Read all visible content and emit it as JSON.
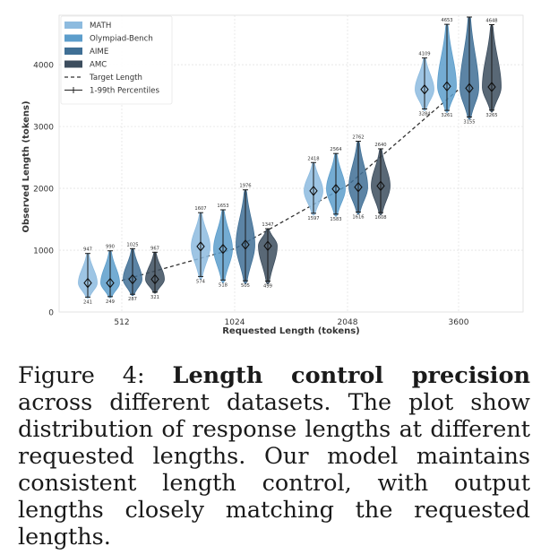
{
  "chart_data": {
    "type": "violin",
    "xlabel": "Requested Length (tokens)",
    "ylabel": "Observed Length (tokens)",
    "ylim": [
      0,
      4800
    ],
    "yticks": [
      0,
      1000,
      2000,
      3000,
      4000
    ],
    "categories": [
      "512",
      "1024",
      "2048",
      "3600"
    ],
    "target_length": [
      512,
      1024,
      2048,
      3600
    ],
    "legend": [
      "MATH",
      "Olympiad-Bench",
      "AIME",
      "AMC",
      "Target Length",
      "1-99th Percentiles"
    ],
    "legend_position": "top-left",
    "grid": true,
    "series": [
      {
        "name": "MATH",
        "color": "#8dbbdf",
        "median": [
          470,
          1060,
          1960,
          3600
        ],
        "p1": [
          241,
          574,
          1597,
          3284
        ],
        "p99": [
          947,
          1607,
          2418,
          4109
        ],
        "p1_labels": [
          "241",
          "574",
          "1597",
          "3284"
        ],
        "p99_labels": [
          "947",
          "1607",
          "2418",
          "4109"
        ]
      },
      {
        "name": "Olympiad-Bench",
        "color": "#5c9dcb",
        "median": [
          470,
          1020,
          1990,
          3650
        ],
        "p1": [
          249,
          518,
          1583,
          3261
        ],
        "p99": [
          990,
          1653,
          2564,
          4653
        ],
        "p1_labels": [
          "249",
          "518",
          "1583",
          "3261"
        ],
        "p99_labels": [
          "990",
          "1653",
          "2564",
          "4653"
        ]
      },
      {
        "name": "AIME",
        "color": "#3f6f95",
        "median": [
          530,
          1090,
          2020,
          3620
        ],
        "p1": [
          287,
          505,
          1616,
          3155
        ],
        "p99": [
          1025,
          1976,
          2762,
          4800
        ],
        "p1_labels": [
          "287",
          "505",
          "1616",
          "3155"
        ],
        "p99_labels": [
          "1025",
          "1976",
          "2762",
          ""
        ]
      },
      {
        "name": "AMC",
        "color": "#3c4d5e",
        "median": [
          530,
          1070,
          2040,
          3640
        ],
        "p1": [
          321,
          499,
          1608,
          3265
        ],
        "p99": [
          967,
          1347,
          2640,
          4648
        ],
        "p1_labels": [
          "321",
          "499",
          "1608",
          "3265"
        ],
        "p99_labels": [
          "967",
          "1347",
          "2640",
          "4648"
        ]
      }
    ]
  },
  "caption": {
    "label": "Figure 4:",
    "bold": "Length control precision",
    "text": "across different datasets. The plot show distribution of response lengths at different requested lengths. Our model maintains consistent length control, with output lengths closely matching the requested lengths."
  }
}
